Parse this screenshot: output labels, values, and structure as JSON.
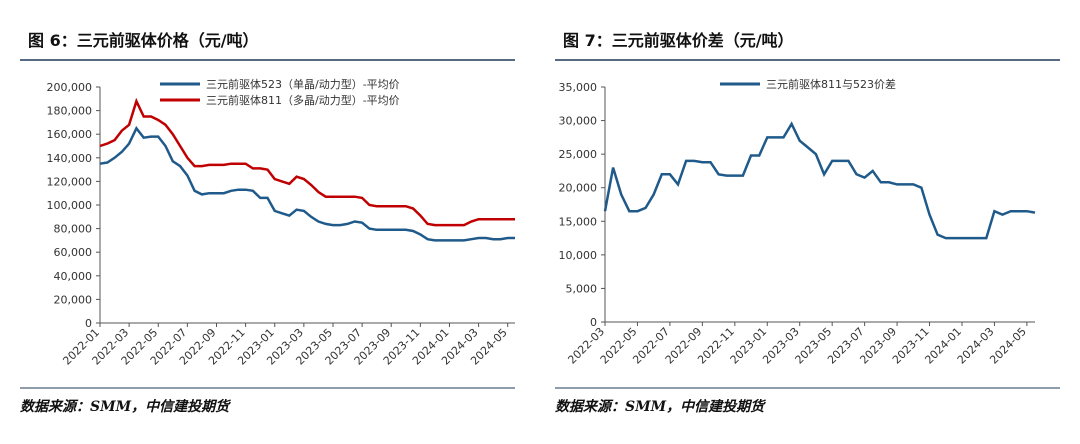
{
  "chart_data": [
    {
      "type": "line",
      "title": "图 6：三元前驱体价格（元/吨）",
      "source": "数据来源：SMM，中信建投期货",
      "categories": [
        "2022-01",
        null,
        null,
        null,
        "2022-03",
        null,
        null,
        null,
        "2022-05",
        null,
        null,
        null,
        "2022-07",
        null,
        null,
        null,
        "2022-09",
        null,
        null,
        null,
        "2022-11",
        null,
        null,
        null,
        "2023-01",
        null,
        null,
        null,
        "2023-03",
        null,
        null,
        null,
        "2023-05",
        null,
        null,
        null,
        "2023-07",
        null,
        null,
        null,
        "2023-09",
        null,
        null,
        null,
        "2023-11",
        null,
        null,
        null,
        "2024-01",
        null,
        null,
        null,
        "2024-03",
        null,
        null,
        null,
        "2024-05",
        null
      ],
      "series": [
        {
          "name": "三元前驱体523（单晶/动力型）-平均价",
          "color": "#1f5a8a",
          "values": [
            135000,
            136000,
            140000,
            145000,
            152000,
            165000,
            157000,
            158000,
            158000,
            150000,
            137000,
            133000,
            125000,
            112000,
            109000,
            110000,
            110000,
            110000,
            112000,
            113000,
            113000,
            112000,
            106000,
            106000,
            95000,
            93000,
            91000,
            96000,
            95000,
            90000,
            86000,
            84000,
            83000,
            83000,
            84000,
            86000,
            85000,
            80000,
            79000,
            79000,
            79000,
            79000,
            79000,
            78000,
            75000,
            71000,
            70000,
            70000,
            70000,
            70000,
            70000,
            71000,
            72000,
            72000,
            71000,
            71000,
            72000,
            72000
          ]
        },
        {
          "name": "三元前驱体811（多晶/动力型）-平均价",
          "color": "#c00000",
          "values": [
            150000,
            152000,
            155000,
            163000,
            168000,
            188000,
            175000,
            175000,
            172000,
            168000,
            160000,
            150000,
            140000,
            133000,
            133000,
            134000,
            134000,
            134000,
            135000,
            135000,
            135000,
            131000,
            131000,
            130000,
            122000,
            120000,
            118000,
            124000,
            122000,
            117000,
            111000,
            107000,
            107000,
            107000,
            107000,
            107000,
            106000,
            100000,
            99000,
            99000,
            99000,
            99000,
            99000,
            97000,
            91000,
            84000,
            83000,
            83000,
            83000,
            83000,
            83000,
            86000,
            88000,
            88000,
            88000,
            88000,
            88000,
            88000
          ]
        }
      ],
      "ylim": [
        0,
        200000
      ],
      "yticks": [
        0,
        {
          "value": 20000,
          "label": "20,000"
        },
        {
          "value": 40000,
          "label": "40,000"
        },
        {
          "value": 60000,
          "label": "60,000"
        },
        {
          "value": 80000,
          "label": "80,000"
        },
        {
          "value": 100000,
          "label": "100,000"
        },
        {
          "value": 120000,
          "label": "120,000"
        },
        {
          "value": 140000,
          "label": "140,000"
        },
        {
          "value": 160000,
          "label": "160,000"
        },
        {
          "value": 180000,
          "label": "180,000"
        },
        {
          "value": 200000,
          "label": "200,000"
        }
      ]
    },
    {
      "type": "line",
      "title": "图 7：三元前驱体价差（元/吨）",
      "source": "数据来源：SMM，中信建投期货",
      "categories": [
        "2022-03",
        null,
        null,
        null,
        "2022-05",
        null,
        null,
        null,
        "2022-07",
        null,
        null,
        null,
        "2022-09",
        null,
        null,
        null,
        "2022-11",
        null,
        null,
        null,
        "2023-01",
        null,
        null,
        null,
        "2023-03",
        null,
        null,
        null,
        "2023-05",
        null,
        null,
        null,
        "2023-07",
        null,
        null,
        null,
        "2023-09",
        null,
        null,
        null,
        "2023-11",
        null,
        null,
        null,
        "2024-01",
        null,
        null,
        null,
        "2024-03",
        null,
        null,
        null,
        "2024-05",
        null
      ],
      "series": [
        {
          "name": "三元前驱体811与523价差",
          "color": "#1f5a8a",
          "values": [
            16500,
            23000,
            19000,
            16500,
            16500,
            17000,
            19000,
            22000,
            22000,
            20500,
            24000,
            24000,
            23800,
            23800,
            22000,
            21800,
            21800,
            21800,
            24800,
            24800,
            27500,
            27500,
            27500,
            29500,
            27000,
            26000,
            25000,
            22000,
            24000,
            24000,
            24000,
            22000,
            21500,
            22500,
            20800,
            20800,
            20500,
            20500,
            20500,
            20000,
            16000,
            13000,
            12500,
            12500,
            12500,
            12500,
            12500,
            12500,
            16500,
            16000,
            16500,
            16500,
            16500,
            16300
          ]
        }
      ],
      "ylim": [
        0,
        35000
      ],
      "yticks": [
        0,
        {
          "value": 5000,
          "label": "5,000"
        },
        {
          "value": 10000,
          "label": "10,000"
        },
        {
          "value": 15000,
          "label": "15,000"
        },
        {
          "value": 20000,
          "label": "20,000"
        },
        {
          "value": 25000,
          "label": "25,000"
        },
        {
          "value": 30000,
          "label": "30,000"
        },
        {
          "value": 35000,
          "label": "35,000"
        }
      ]
    }
  ]
}
